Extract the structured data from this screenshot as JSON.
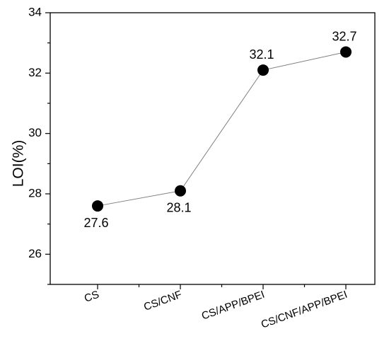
{
  "chart_data": {
    "type": "line",
    "categories": [
      "CS",
      "CS/CNF",
      "CS/APP/BPEI",
      "CS/CNF/APP/BPEI"
    ],
    "values": [
      27.6,
      28.1,
      32.1,
      32.7
    ],
    "data_labels": [
      "27.6",
      "28.1",
      "32.1",
      "32.7"
    ],
    "title": "",
    "xlabel": "",
    "ylabel": "LOI(%)",
    "ylim": [
      25,
      34
    ],
    "yticks": [
      26,
      28,
      30,
      32,
      34
    ],
    "ytick_labels": [
      "26",
      "28",
      "30",
      "32",
      "34"
    ],
    "grid": false,
    "legend": "none",
    "colors": {
      "line": "#808080",
      "marker": "#000000",
      "axis": "#000000"
    }
  }
}
